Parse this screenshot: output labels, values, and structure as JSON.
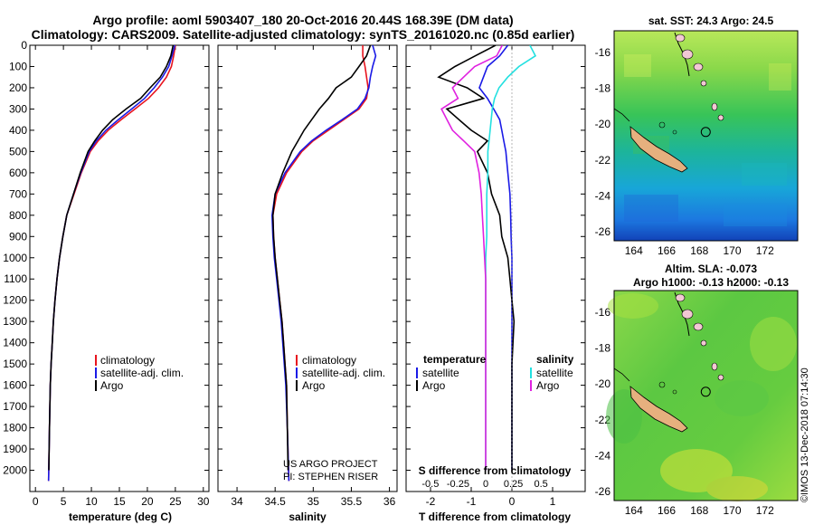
{
  "header": {
    "title_line1": "Argo profile: aoml 5903407_180 20-Oct-2016 20.44S 168.39E (DM data)",
    "title_line2": "Climatology: CARS2009. Satellite-adjusted climatology: synTS_20161020.nc (0.85d earlier)"
  },
  "maps": {
    "sst_title": "sat. SST: 24.3 Argo: 24.5",
    "sla_title_line1": "Altim. SLA: -0.073",
    "sla_title_line2": "Argo h1000: -0.13 h2000: -0.13",
    "x_ticks": [
      "164",
      "166",
      "168",
      "170",
      "172"
    ],
    "y_ticks": [
      "-16",
      "-18",
      "-20",
      "-22",
      "-24",
      "-26"
    ],
    "x_tick_values": [
      164,
      166,
      168,
      170,
      172
    ],
    "y_tick_values": [
      -16,
      -18,
      -20,
      -22,
      -24,
      -26
    ],
    "lon_range": [
      162.8,
      174.0
    ],
    "lat_range": [
      -14.8,
      -26.5
    ],
    "profile_lon": 168.39,
    "profile_lat": -20.44
  },
  "stamp": "©IMOS 13-Dec-2018 07:14:30",
  "credit": {
    "line1": "US ARGO PROJECT",
    "line2": "PI: STEPHEN RISER"
  },
  "colors": {
    "climatology": "#e8141e",
    "satellite": "#1a1ae6",
    "argo": "#000000",
    "sal_satellite": "#22e0e0",
    "sal_argo": "#e022e0"
  },
  "chart_data": [
    {
      "type": "line",
      "panel": "temperature",
      "xlabel": "temperature (deg C)",
      "ylabel": "",
      "xlim": [
        -1,
        31
      ],
      "ylim": [
        2100,
        0
      ],
      "x_ticks": [
        0,
        5,
        10,
        15,
        20,
        25,
        30
      ],
      "y_ticks": [
        0,
        100,
        200,
        300,
        400,
        500,
        600,
        700,
        800,
        900,
        1000,
        1100,
        1200,
        1300,
        1400,
        1500,
        1600,
        1700,
        1800,
        1900,
        2000
      ],
      "y_tick_labels": [
        "0",
        "100",
        "200",
        "300",
        "400",
        "500",
        "600",
        "700",
        "800",
        "900",
        "1000",
        "1100",
        "1200",
        "1300",
        "1400",
        "1500",
        "1600",
        "1700",
        "1800",
        "1900",
        "2000"
      ],
      "legend": [
        "climatology",
        "satellite-adj. clim.",
        "Argo"
      ],
      "series": [
        {
          "name": "climatology",
          "x": [
            25.0,
            24.7,
            24.3,
            23.4,
            22.0,
            20.2,
            17.8,
            15.3,
            13.0,
            11.2,
            9.8,
            8.2,
            6.9,
            5.6,
            4.9,
            4.3,
            3.85,
            3.5,
            3.2,
            3.0,
            2.8,
            2.65,
            2.5,
            2.35
          ],
          "depth": [
            0,
            50,
            100,
            150,
            200,
            250,
            300,
            350,
            400,
            450,
            500,
            600,
            700,
            800,
            900,
            1000,
            1100,
            1200,
            1300,
            1400,
            1500,
            1600,
            1800,
            2050
          ]
        },
        {
          "name": "satellite-adj. clim.",
          "x": [
            24.9,
            24.4,
            23.8,
            22.7,
            21.2,
            19.5,
            17.2,
            14.8,
            12.6,
            10.9,
            9.6,
            8.1,
            6.8,
            5.6,
            4.9,
            4.3,
            3.85,
            3.5,
            3.2,
            3.0,
            2.8,
            2.65,
            2.5,
            2.35
          ],
          "depth": [
            0,
            50,
            100,
            150,
            200,
            250,
            300,
            350,
            400,
            450,
            500,
            600,
            700,
            800,
            900,
            1000,
            1100,
            1200,
            1300,
            1400,
            1500,
            1600,
            1800,
            2050
          ]
        },
        {
          "name": "Argo",
          "x": [
            24.6,
            24.2,
            23.4,
            22.3,
            20.5,
            18.8,
            16.2,
            13.8,
            12.0,
            10.6,
            9.4,
            8.0,
            6.8,
            5.6,
            4.9,
            4.3,
            3.85,
            3.5,
            3.2,
            3.0,
            2.8,
            2.65,
            2.5,
            2.4
          ],
          "depth": [
            0,
            50,
            100,
            150,
            200,
            250,
            300,
            350,
            400,
            450,
            500,
            600,
            700,
            800,
            900,
            1000,
            1100,
            1200,
            1300,
            1400,
            1500,
            1600,
            1800,
            2000
          ]
        }
      ]
    },
    {
      "type": "line",
      "panel": "salinity",
      "xlabel": "salinity",
      "ylabel": "",
      "xlim": [
        33.75,
        36.1
      ],
      "ylim": [
        2100,
        0
      ],
      "x_ticks": [
        34,
        34.5,
        35,
        35.5,
        36
      ],
      "x_tick_labels": [
        "34",
        "34.5",
        "35",
        "35.5",
        "36"
      ],
      "legend": [
        "climatology",
        "satellite-adj. clim.",
        "Argo"
      ],
      "series": [
        {
          "name": "climatology",
          "x": [
            35.65,
            35.65,
            35.68,
            35.7,
            35.72,
            35.7,
            35.6,
            35.4,
            35.2,
            35.0,
            34.85,
            34.65,
            34.52,
            34.47,
            34.48,
            34.5,
            34.53,
            34.56,
            34.59,
            34.61,
            34.63,
            34.65,
            34.66,
            34.68
          ],
          "depth": [
            0,
            50,
            100,
            150,
            200,
            250,
            300,
            350,
            400,
            450,
            500,
            600,
            700,
            800,
            900,
            1000,
            1100,
            1200,
            1300,
            1400,
            1500,
            1600,
            1800,
            2050
          ]
        },
        {
          "name": "satellite-adj. clim.",
          "x": [
            35.78,
            35.82,
            35.78,
            35.75,
            35.73,
            35.68,
            35.58,
            35.38,
            35.17,
            34.98,
            34.83,
            34.63,
            34.5,
            34.46,
            34.47,
            34.49,
            34.52,
            34.55,
            34.58,
            34.6,
            34.62,
            34.64,
            34.66,
            34.68
          ],
          "depth": [
            0,
            50,
            100,
            150,
            200,
            250,
            300,
            350,
            400,
            450,
            500,
            600,
            700,
            800,
            900,
            1000,
            1100,
            1200,
            1300,
            1400,
            1500,
            1600,
            1800,
            2050
          ]
        },
        {
          "name": "Argo",
          "x": [
            35.75,
            35.7,
            35.6,
            35.5,
            35.3,
            35.2,
            35.08,
            34.98,
            34.88,
            34.8,
            34.72,
            34.6,
            34.5,
            34.47,
            34.48,
            34.5,
            34.53,
            34.56,
            34.59,
            34.61,
            34.63,
            34.65,
            34.66,
            34.67
          ],
          "depth": [
            0,
            50,
            100,
            150,
            200,
            250,
            300,
            350,
            400,
            450,
            500,
            600,
            700,
            800,
            900,
            1000,
            1100,
            1200,
            1300,
            1400,
            1500,
            1600,
            1800,
            2000
          ]
        }
      ]
    },
    {
      "type": "line",
      "panel": "difference",
      "xlabel": "T difference from climatology",
      "secondary_xlabel": "S difference from climatology",
      "xlim": [
        -2.6,
        1.8
      ],
      "ylim": [
        2100,
        0
      ],
      "x_ticks": [
        -2,
        -1,
        0,
        1
      ],
      "x_tick_labels": [
        "-2",
        "-1",
        "0",
        "1"
      ],
      "secondary_x_ticks": [
        -0.5,
        -0.25,
        0,
        0.25,
        0.5
      ],
      "secondary_x_tick_labels": [
        "-0.5",
        "-0.25",
        "0",
        "0.25",
        "0.5"
      ],
      "legend_temperature_title": "temperature",
      "legend_salinity_title": "salinity",
      "legend_temperature": [
        "satellite",
        "Argo"
      ],
      "legend_salinity": [
        "satellite",
        "Argo"
      ],
      "series": [
        {
          "name": "temperature satellite",
          "x": [
            -0.1,
            -0.3,
            -0.6,
            -0.7,
            -0.8,
            -0.6,
            -0.45,
            -0.3,
            -0.25,
            -0.2,
            -0.15,
            -0.1,
            -0.05,
            -0.03,
            -0.02,
            0,
            0,
            0,
            0,
            0,
            0,
            0
          ],
          "depth": [
            0,
            50,
            100,
            150,
            200,
            250,
            300,
            350,
            400,
            450,
            500,
            600,
            700,
            800,
            900,
            1000,
            1100,
            1200,
            1300,
            1500,
            1800,
            2000
          ]
        },
        {
          "name": "temperature Argo",
          "x": [
            -0.4,
            -0.9,
            -1.4,
            -1.8,
            -1.1,
            -0.7,
            -1.6,
            -1.3,
            -1.0,
            -0.6,
            -0.85,
            -0.6,
            -0.5,
            -0.3,
            -0.25,
            -0.1,
            -0.05,
            0,
            0.05,
            0,
            0,
            0
          ],
          "depth": [
            0,
            50,
            100,
            150,
            200,
            250,
            300,
            350,
            400,
            450,
            500,
            600,
            700,
            800,
            900,
            1000,
            1100,
            1200,
            1300,
            1500,
            1800,
            2000
          ]
        },
        {
          "name": "salinity satellite",
          "x": [
            0.4,
            0.45,
            0.3,
            0.2,
            0.12,
            0.08,
            0.06,
            0.05,
            0.04,
            0.03,
            0.02,
            0.02,
            0.01,
            0.01,
            0.01,
            0,
            0,
            0,
            0,
            0,
            0,
            0
          ],
          "depth": [
            0,
            50,
            100,
            150,
            200,
            250,
            300,
            350,
            400,
            450,
            500,
            600,
            700,
            800,
            900,
            1000,
            1100,
            1200,
            1300,
            1500,
            1800,
            2000
          ]
        },
        {
          "name": "salinity Argo",
          "x": [
            0.15,
            0.1,
            -0.1,
            -0.2,
            -0.3,
            -0.25,
            -0.4,
            -0.35,
            -0.3,
            -0.2,
            -0.1,
            -0.06,
            -0.04,
            -0.03,
            -0.02,
            -0.01,
            0,
            0,
            0,
            0,
            0,
            0
          ],
          "depth": [
            0,
            50,
            100,
            150,
            200,
            250,
            300,
            350,
            400,
            450,
            500,
            600,
            700,
            800,
            900,
            1000,
            1100,
            1200,
            1300,
            1500,
            1800,
            2000
          ]
        }
      ]
    }
  ]
}
